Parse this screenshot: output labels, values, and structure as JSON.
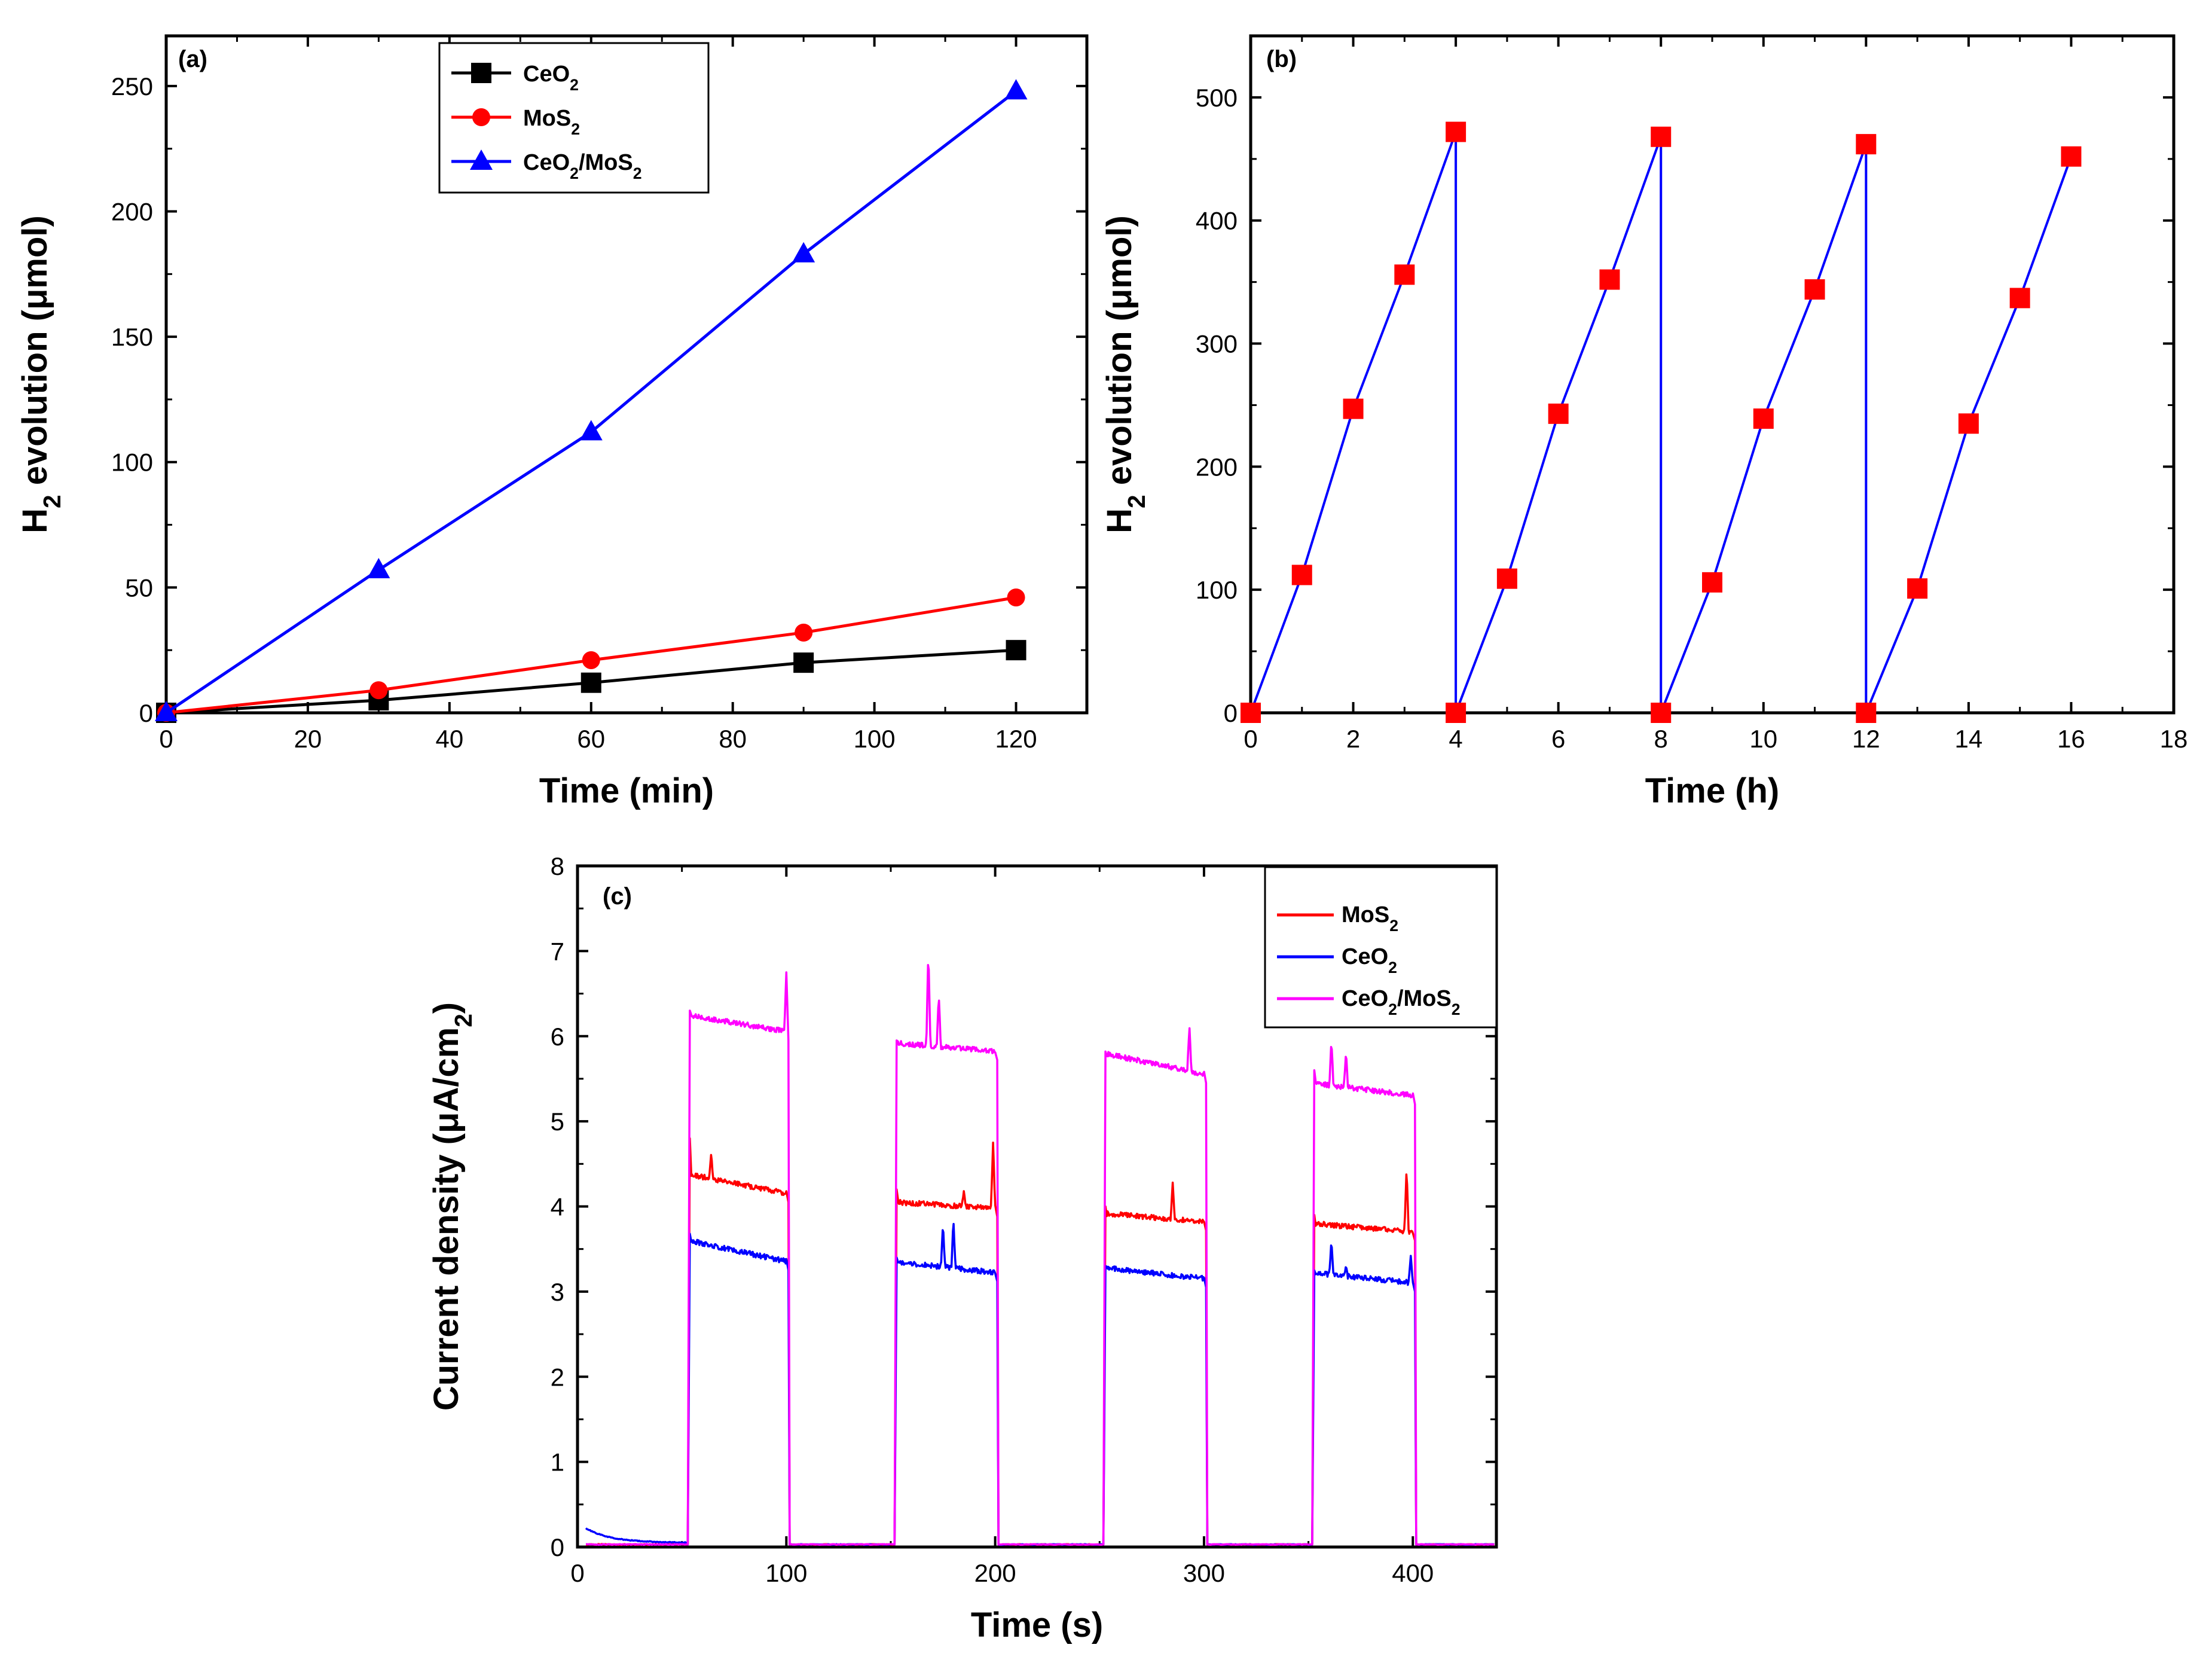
{
  "chart_data": [
    {
      "id": "a",
      "type": "line",
      "panel_label": "(a)",
      "xlabel": "Time (min)",
      "ylabel": "H2 evolution (μmol)",
      "ylabel_parts": [
        "H",
        "2",
        " evolution (μmol)"
      ],
      "xlim": [
        0,
        130
      ],
      "ylim": [
        0,
        270
      ],
      "xticks": [
        0,
        20,
        40,
        60,
        80,
        100,
        120
      ],
      "yticks": [
        0,
        50,
        100,
        150,
        200,
        250
      ],
      "series": [
        {
          "name": "CeO2",
          "label_parts": [
            "CeO",
            "2",
            ""
          ],
          "color": "#000000",
          "marker": "square",
          "x": [
            0,
            30,
            60,
            90,
            120
          ],
          "values": [
            0,
            5,
            12,
            20,
            25
          ]
        },
        {
          "name": "MoS2",
          "label_parts": [
            "MoS",
            "2",
            ""
          ],
          "color": "#ff0000",
          "marker": "circle",
          "x": [
            0,
            30,
            60,
            90,
            120
          ],
          "values": [
            0,
            9,
            21,
            32,
            46
          ]
        },
        {
          "name": "CeO2/MoS2",
          "label_parts": [
            "CeO",
            "2",
            "/MoS",
            "2"
          ],
          "color": "#0000ff",
          "marker": "triangle",
          "x": [
            0,
            30,
            60,
            90,
            120
          ],
          "values": [
            0,
            57,
            112,
            183,
            248
          ]
        }
      ]
    },
    {
      "id": "b",
      "type": "line",
      "panel_label": "(b)",
      "xlabel": "Time (h)",
      "ylabel": "H2 evolution (μmol)",
      "ylabel_parts": [
        "H",
        "2",
        " evolution (μmol)"
      ],
      "xlim": [
        0,
        18
      ],
      "ylim": [
        0,
        550
      ],
      "xticks": [
        0,
        2,
        4,
        6,
        8,
        10,
        12,
        14,
        16,
        18
      ],
      "yticks": [
        0,
        100,
        200,
        300,
        400,
        500
      ],
      "series": [
        {
          "name": "H2 evolution",
          "color": "#0000ff",
          "marker_color": "#ff0000",
          "marker": "square",
          "x": [
            0,
            1,
            2,
            3,
            4,
            4,
            5,
            6,
            7,
            8,
            8,
            9,
            10,
            11,
            12,
            12,
            13,
            14,
            15,
            16
          ],
          "values": [
            0,
            112,
            247,
            356,
            472,
            0,
            109,
            243,
            352,
            468,
            0,
            106,
            239,
            344,
            462,
            0,
            101,
            235,
            337,
            452
          ]
        }
      ]
    },
    {
      "id": "c",
      "type": "line",
      "panel_label": "(c)",
      "xlabel": "Time (s)",
      "ylabel": "Current density (μA/cm2)",
      "ylabel_parts": [
        "Current density (μA/cm",
        "2",
        ")"
      ],
      "xlim": [
        0,
        440
      ],
      "ylim": [
        0,
        8
      ],
      "xticks": [
        0,
        100,
        200,
        300,
        400
      ],
      "yticks": [
        0,
        1,
        2,
        3,
        4,
        5,
        6,
        7,
        8
      ],
      "on_periods": [
        [
          53,
          101
        ],
        [
          152,
          201
        ],
        [
          252,
          301
        ],
        [
          352,
          401
        ]
      ],
      "off_level": 0.03,
      "initial_transient": {
        "name": "CeO2",
        "start_value": 0.22,
        "end_value": 0.05,
        "t_end": 50
      },
      "series": [
        {
          "name": "MoS2",
          "label_parts": [
            "MoS",
            "2",
            ""
          ],
          "color": "#ff0000",
          "cycle_start": [
            4.38,
            4.05,
            3.92,
            3.8
          ],
          "cycle_end": [
            4.15,
            3.98,
            3.82,
            3.7
          ],
          "peak": [
            4.8,
            4.2,
            4.0,
            3.9
          ],
          "spikes": [
            [
              64,
              4.62
            ],
            [
              185,
              4.18
            ],
            [
              199,
              4.75
            ],
            [
              285,
              4.28
            ],
            [
              397,
              4.45
            ]
          ]
        },
        {
          "name": "CeO2",
          "label_parts": [
            "CeO",
            "2",
            ""
          ],
          "color": "#0000ff",
          "cycle_start": [
            3.6,
            3.35,
            3.28,
            3.22
          ],
          "cycle_end": [
            3.35,
            3.22,
            3.15,
            3.1
          ],
          "peak": [
            3.68,
            3.4,
            3.3,
            3.25
          ],
          "spikes": [
            [
              175,
              3.8
            ],
            [
              180,
              3.85
            ],
            [
              361,
              3.6
            ],
            [
              368,
              3.3
            ],
            [
              399,
              3.42
            ]
          ]
        },
        {
          "name": "CeO2/MoS2",
          "label_parts": [
            "CeO",
            "2",
            "/MoS",
            "2"
          ],
          "color": "#ff00ff",
          "cycle_start": [
            6.25,
            5.92,
            5.8,
            5.45
          ],
          "cycle_end": [
            6.05,
            5.82,
            5.55,
            5.3
          ],
          "peak": [
            6.3,
            5.95,
            5.82,
            5.6
          ],
          "spikes": [
            [
              100,
              6.75
            ],
            [
              168,
              7.0
            ],
            [
              173,
              6.48
            ],
            [
              293,
              6.12
            ],
            [
              361,
              5.95
            ],
            [
              368,
              5.82
            ]
          ]
        }
      ]
    }
  ]
}
